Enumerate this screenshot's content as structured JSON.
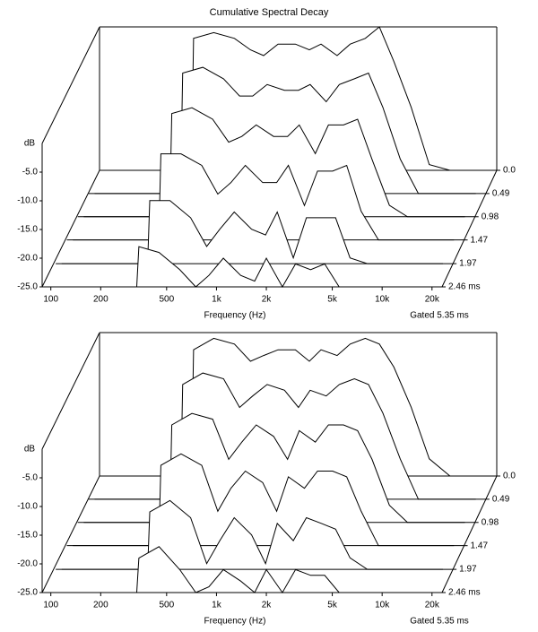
{
  "chart_data": [
    {
      "type": "waterfall",
      "title": "Cumulative Spectral Decay",
      "xlabel": "Frequency (Hz)",
      "ylabel": "dB",
      "annotation": "Gated 5.35 ms",
      "xscale": "log",
      "xlim": [
        92,
        23000
      ],
      "xticks": [
        100,
        200,
        500,
        {
          "value": 1000,
          "label": "1k"
        },
        {
          "value": 2000,
          "label": "2k"
        },
        {
          "value": 5000,
          "label": "5k"
        },
        {
          "value": 10000,
          "label": "10k"
        },
        {
          "value": 20000,
          "label": "20k"
        }
      ],
      "ylim": [
        -25,
        0
      ],
      "yticks": [
        {
          "value": -5,
          "label": "-5.0"
        },
        {
          "value": -10,
          "label": "-10.0"
        },
        {
          "value": -15,
          "label": "-15.0"
        },
        {
          "value": -20,
          "label": "-20.0"
        },
        {
          "value": -25,
          "label": "-25.0"
        }
      ],
      "zlim": [
        0,
        2.46
      ],
      "zticks": [
        {
          "value": 0,
          "label": "0.0"
        },
        0.49,
        0.98,
        1.47,
        1.97,
        {
          "value": 2.46,
          "label": "2.46 ms"
        }
      ],
      "color": "#000000",
      "x": [
        100,
        330,
        340,
        450,
        600,
        750,
        900,
        1100,
        1400,
        1700,
        2000,
        2500,
        3000,
        3700,
        4500,
        5500,
        7000,
        9000,
        12000,
        20000
      ],
      "slices": [
        {
          "time": 0,
          "values": [
            -25,
            -25,
            -2,
            -1,
            -2,
            -4,
            -5,
            -3,
            -3,
            -4,
            -3,
            -5,
            -3,
            -2,
            0,
            -6,
            -14,
            -24,
            -25,
            -25
          ]
        },
        {
          "time": 0.49,
          "values": [
            -25,
            -25,
            -4,
            -3,
            -5,
            -8,
            -8,
            -6,
            -7,
            -7,
            -6,
            -9,
            -6,
            -5,
            -4,
            -10,
            -19,
            -25,
            -25,
            -25
          ]
        },
        {
          "time": 0.98,
          "values": [
            -25,
            -25,
            -7,
            -6,
            -8,
            -12,
            -11,
            -9,
            -11,
            -11,
            -9,
            -14,
            -9,
            -9,
            -8,
            -15,
            -23,
            -25,
            -25,
            -25
          ]
        },
        {
          "time": 1.47,
          "values": [
            -25,
            -25,
            -10,
            -10,
            -12,
            -17,
            -15,
            -12,
            -15,
            -15,
            -12,
            -19,
            -13,
            -13,
            -12,
            -20,
            -25,
            -25,
            -25,
            -25
          ]
        },
        {
          "time": 1.97,
          "values": [
            -25,
            -25,
            -14,
            -14,
            -17,
            -22,
            -19,
            -16,
            -19,
            -20,
            -16,
            -24,
            -17,
            -17,
            -17,
            -24,
            -25,
            -25,
            -25,
            -25
          ]
        },
        {
          "time": 2.46,
          "values": [
            -25,
            -25,
            -18,
            -19,
            -22,
            -25,
            -23,
            -20,
            -23,
            -24,
            -20,
            -25,
            -21,
            -22,
            -21,
            -25,
            -25,
            -25,
            -25,
            -25
          ]
        }
      ]
    },
    {
      "type": "waterfall",
      "xlabel": "Frequency (Hz)",
      "ylabel": "dB",
      "annotation": "Gated 5.35 ms",
      "xscale": "log",
      "xlim": [
        92,
        23000
      ],
      "xticks": [
        100,
        200,
        500,
        {
          "value": 1000,
          "label": "1k"
        },
        {
          "value": 2000,
          "label": "2k"
        },
        {
          "value": 5000,
          "label": "5k"
        },
        {
          "value": 10000,
          "label": "10k"
        },
        {
          "value": 20000,
          "label": "20k"
        }
      ],
      "ylim": [
        -25,
        0
      ],
      "yticks": [
        {
          "value": -5,
          "label": "-5.0"
        },
        {
          "value": -10,
          "label": "-10.0"
        },
        {
          "value": -15,
          "label": "-15.0"
        },
        {
          "value": -20,
          "label": "-20.0"
        },
        {
          "value": -25,
          "label": "-25.0"
        }
      ],
      "zlim": [
        0,
        2.46
      ],
      "zticks": [
        {
          "value": 0,
          "label": "0.0"
        },
        0.49,
        0.98,
        1.47,
        1.97,
        {
          "value": 2.46,
          "label": "2.46 ms"
        }
      ],
      "color": "#000000",
      "x": [
        100,
        330,
        340,
        450,
        600,
        750,
        900,
        1100,
        1400,
        1700,
        2000,
        2500,
        3000,
        3700,
        4500,
        5500,
        7000,
        9000,
        12000,
        20000
      ],
      "slices": [
        {
          "time": 0,
          "values": [
            -25,
            -25,
            -3,
            -1,
            -2,
            -5,
            -4,
            -3,
            -3,
            -5,
            -3,
            -4,
            -2,
            -1,
            -2,
            -6,
            -13,
            -22,
            -25,
            -25
          ]
        },
        {
          "time": 0.49,
          "values": [
            -25,
            -25,
            -5,
            -3,
            -4,
            -9,
            -7,
            -5,
            -6,
            -9,
            -6,
            -7,
            -5,
            -4,
            -5,
            -10,
            -18,
            -25,
            -25,
            -25
          ]
        },
        {
          "time": 0.98,
          "values": [
            -25,
            -25,
            -8,
            -6,
            -7,
            -14,
            -11,
            -8,
            -10,
            -14,
            -9,
            -11,
            -8,
            -8,
            -9,
            -14,
            -22,
            -25,
            -25,
            -25
          ]
        },
        {
          "time": 1.47,
          "values": [
            -25,
            -25,
            -11,
            -9,
            -11,
            -19,
            -15,
            -12,
            -14,
            -19,
            -13,
            -15,
            -12,
            -12,
            -13,
            -19,
            -25,
            -25,
            -25,
            -25
          ]
        },
        {
          "time": 1.97,
          "values": [
            -25,
            -25,
            -15,
            -13,
            -16,
            -24,
            -20,
            -16,
            -19,
            -24,
            -17,
            -20,
            -16,
            -17,
            -18,
            -23,
            -25,
            -25,
            -25,
            -25
          ]
        },
        {
          "time": 2.46,
          "values": [
            -25,
            -25,
            -19,
            -17,
            -21,
            -25,
            -24,
            -21,
            -23,
            -25,
            -21,
            -25,
            -21,
            -22,
            -22,
            -25,
            -25,
            -25,
            -25,
            -25
          ]
        }
      ]
    }
  ]
}
